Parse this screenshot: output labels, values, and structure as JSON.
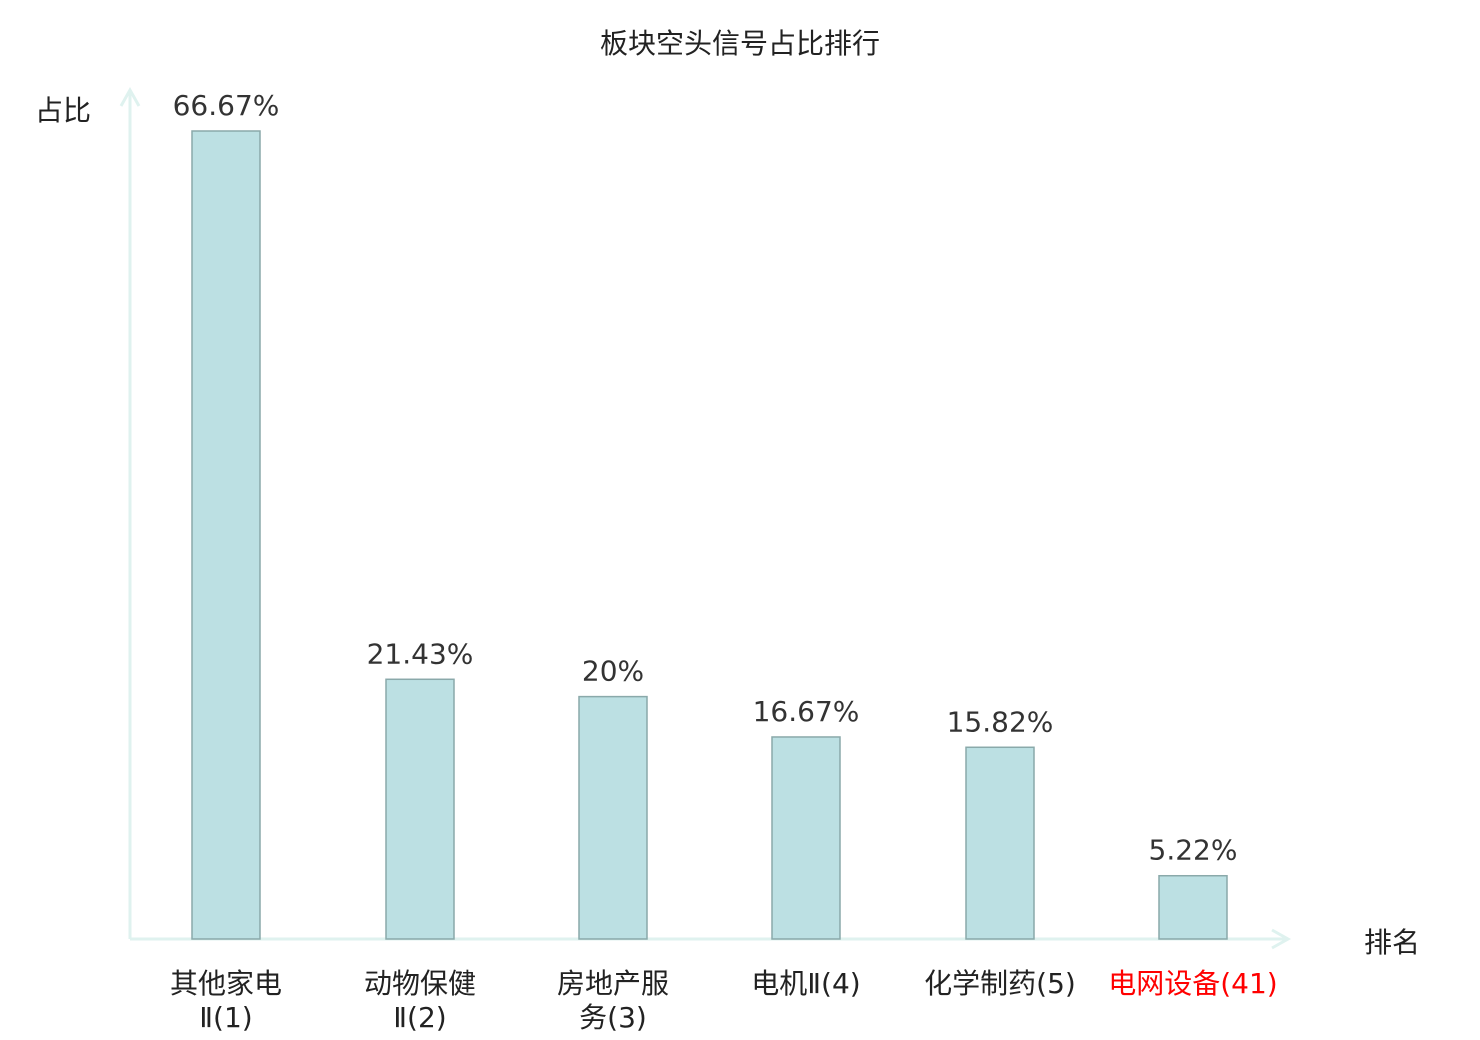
{
  "chart_data": {
    "type": "bar",
    "title": "板块空头信号占比排行",
    "ylabel": "占比",
    "xlabel": "排名",
    "categories": [
      "其他家电Ⅱ(1)",
      "动物保健Ⅱ(2)",
      "房地产服务(3)",
      "电机Ⅱ(4)",
      "化学制药(5)",
      "电网设备(41)"
    ],
    "values": [
      66.67,
      21.43,
      20,
      16.67,
      15.82,
      5.22
    ],
    "data_labels": [
      "66.67%",
      "21.43%",
      "20%",
      "16.67%",
      "15.82%",
      "5.22%"
    ],
    "highlighted_category_index": 5,
    "ylim": [
      0,
      70
    ],
    "grid": false,
    "colors": {
      "bar_fill": "#bce0e3",
      "bar_stroke": "#8aa9aa",
      "axis": "#dff2ef",
      "label": "#222222",
      "highlight": "#ff0000"
    }
  }
}
